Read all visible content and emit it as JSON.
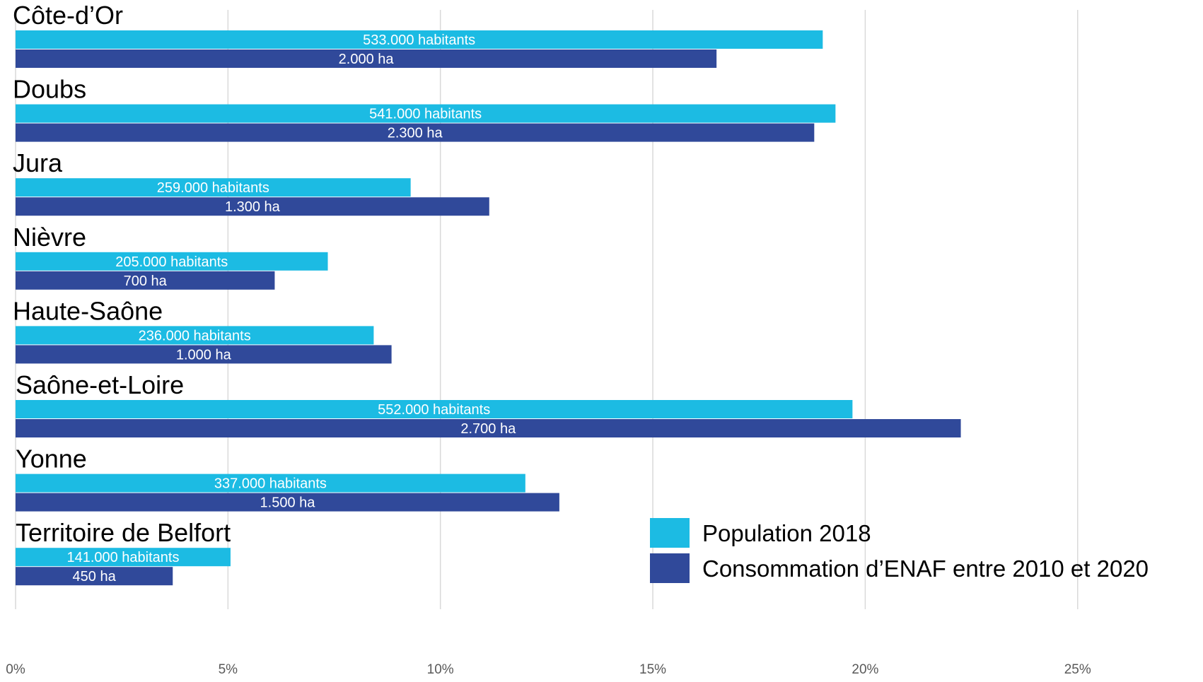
{
  "chart_data": {
    "type": "bar",
    "orientation": "horizontal",
    "categories": [
      "Côte-d’Or",
      "Doubs",
      "Jura",
      "Nièvre",
      "Haute-Saône",
      "Saône-et-Loire",
      "Yonne",
      "Territoire de Belfort"
    ],
    "series": [
      {
        "name": "Population 2018",
        "color": "#1cbbe3",
        "values": [
          19.0,
          19.3,
          9.3,
          7.35,
          8.43,
          19.7,
          12.0,
          5.06
        ],
        "labels": [
          "533.000 habitants",
          "541.000 habitants",
          "259.000 habitants",
          "205.000 habitants",
          "236.000 habitants",
          "552.000 habitants",
          "337.000 habitants",
          "141.000 habitants"
        ]
      },
      {
        "name": "Consommation d’ENAF entre 2010 et 2020",
        "color": "#30499a",
        "values": [
          16.5,
          18.8,
          11.15,
          6.1,
          8.85,
          22.25,
          12.8,
          3.7
        ],
        "labels": [
          "2.000 ha",
          "2.300 ha",
          "1.300 ha",
          "700 ha",
          "1.000 ha",
          "2.700 ha",
          "1.500 ha",
          "450 ha"
        ]
      }
    ],
    "x_ticks": [
      "0%",
      "5%",
      "10%",
      "15%",
      "20%",
      "25%"
    ],
    "xlim": [
      0,
      28
    ],
    "grid": "vertical",
    "legend": "bottom-right",
    "title": "",
    "xlabel": "",
    "ylabel": ""
  }
}
